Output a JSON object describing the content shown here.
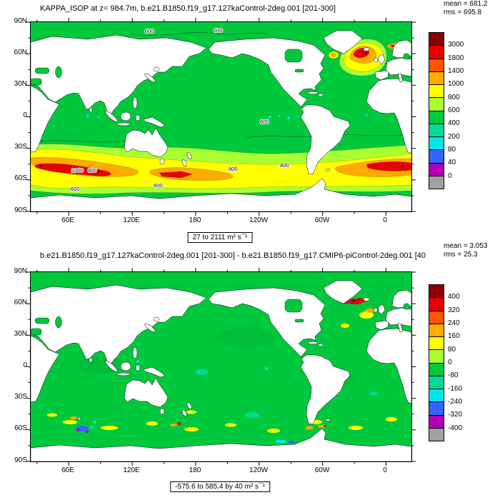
{
  "axes": {
    "lat": [
      "90N",
      "60N",
      "30N",
      "0",
      "30S",
      "60S",
      "90S"
    ],
    "lon": [
      "60E",
      "120E",
      "180",
      "120W",
      "60W",
      "0"
    ]
  },
  "palette": {
    "dark_red": "#8b0000",
    "red": "#e60000",
    "orange_red": "#ff5500",
    "orange": "#ffaa00",
    "yellow": "#ffff00",
    "chartreuse": "#aaff32",
    "green": "#00c83c",
    "teal": "#00dc96",
    "cyan": "#00e6e6",
    "blue": "#3264ff",
    "purple": "#b400b4",
    "gray": "#a0a0a0",
    "green_dark": "#00b137",
    "land": "#ffffff",
    "coast": "#000000"
  },
  "top_panel": {
    "title": "KAPPA_ISOP at z= 984.7m, b.e21.B1850.f19_g17.127kaControl-2deg.001 [201-300]",
    "mean": "mean = 681.2",
    "rms": "rms = 695.8",
    "range_label": "27 to 2111 m² s¯¹",
    "colorbar_labels": [
      "3000",
      "1800",
      "1400",
      "1000",
      "800",
      "600",
      "400",
      "200",
      "80",
      "40",
      "0"
    ],
    "contour_labels": [
      "600",
      "600",
      "1000",
      "800",
      "800",
      "800",
      "600",
      "600",
      "600"
    ]
  },
  "bottom_panel": {
    "title": "b.e21.B1850.f19_g17.127kaControl-2deg.001 [201-300] - b.e21.B1850.f19_g17.CMIP6-piControl-2deg.001 [40",
    "mean": "mean = 3.053",
    "rms": "rms = 25.3",
    "range_label": "-575.6 to 585.4 by 40 m² s¯¹",
    "colorbar_labels": [
      "400",
      "320",
      "240",
      "160",
      "80",
      "0",
      "-80",
      "-160",
      "-240",
      "-320",
      "-400"
    ]
  },
  "chart_data": [
    {
      "type": "heatmap",
      "subtype": "filled-contour world map",
      "title": "KAPPA_ISOP at z= 984.7m, b.e21.B1850.f19_g17.127kaControl-2deg.001 [201-300]",
      "variable": "KAPPA_ISOP",
      "depth": "z= 984.7m",
      "case": "b.e21.B1850.f19_g17.127kaControl-2deg.001",
      "time_average": "[201-300]",
      "units": "m² s¯¹",
      "mean": 681.2,
      "rms": 695.8,
      "data_min": 27,
      "data_max": 2111,
      "contour_levels": [
        0,
        40,
        80,
        200,
        400,
        600,
        800,
        1000,
        1400,
        1800,
        3000
      ],
      "colorbar_colors_top_to_bottom": [
        "#8b0000",
        "#e60000",
        "#ff5500",
        "#ffaa00",
        "#ffff00",
        "#aaff32",
        "#00c83c",
        "#00dc96",
        "#00e6e6",
        "#3264ff",
        "#b400b4",
        "#a0a0a0"
      ],
      "lat_ticks": [
        "90N",
        "60N",
        "30N",
        "0",
        "30S",
        "60S",
        "90S"
      ],
      "lon_ticks": [
        "60E",
        "120E",
        "180",
        "120W",
        "60W",
        "0"
      ],
      "legend_position": "right",
      "features": "mostly 400-800 (green) ocean; 800-1800 (yellow-orange-red) zonal band in Southern Ocean 40S-60S; high values (orange/red/dark red) in subpolar North Atlantic near Greenland-Iceland and Norwegian Sea; low values (cyan/blue) patch in NW Pacific; scattered cyan lows along the equator"
    },
    {
      "type": "heatmap",
      "subtype": "filled-contour world map (difference)",
      "title": "b.e21.B1850.f19_g17.127kaControl-2deg.001 [201-300] - b.e21.B1850.f19_g17.CMIP6-piControl-2deg.001 [40",
      "units": "m² s¯¹",
      "mean": 3.053,
      "rms": 25.3,
      "data_min": -575.6,
      "data_max": 585.4,
      "contour_interval": 40,
      "contour_levels": [
        -400,
        -320,
        -240,
        -160,
        -80,
        0,
        80,
        160,
        240,
        320,
        400
      ],
      "colorbar_colors_top_to_bottom": [
        "#8b0000",
        "#e60000",
        "#ff5500",
        "#ffaa00",
        "#ffff00",
        "#aaff32",
        "#00c83c",
        "#00dc96",
        "#00e6e6",
        "#3264ff",
        "#b400b4",
        "#a0a0a0"
      ],
      "lat_ticks": [
        "90N",
        "60N",
        "30N",
        "0",
        "30S",
        "60S",
        "90S"
      ],
      "lon_ticks": [
        "60E",
        "120E",
        "180",
        "120W",
        "60W",
        "0"
      ],
      "legend_position": "right",
      "features": "near-zero (green) almost everywhere; scattered positive (yellow/orange/red) anomalies along Southern Ocean band and a strong red/dark-red streak south of Greenland; scattered negative (blue/purple) spots in far South Atlantic and near the Greenland streak"
    }
  ]
}
